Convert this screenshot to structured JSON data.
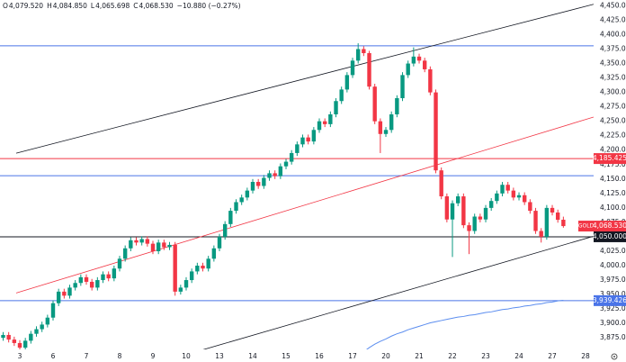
{
  "chart_data": {
    "type": "candlestick",
    "header": [
      {
        "key": "O",
        "text": "4,079.520"
      },
      {
        "key": "H",
        "text": "4,084.850"
      },
      {
        "key": "L",
        "text": "4,065.698"
      },
      {
        "key": "C",
        "text": "4,068.530"
      }
    ],
    "header_change": "−10.880 (−0.27%)",
    "header_color": "#f23645",
    "categories": [
      null,
      null,
      null,
      "3",
      null,
      null,
      null,
      null,
      null,
      "6",
      null,
      null,
      null,
      null,
      null,
      "7",
      null,
      null,
      null,
      null,
      null,
      "8",
      null,
      null,
      null,
      null,
      null,
      "9",
      null,
      null,
      null,
      null,
      null,
      "10",
      null,
      null,
      null,
      null,
      null,
      "13",
      null,
      null,
      null,
      null,
      null,
      "14",
      null,
      null,
      null,
      null,
      null,
      "15",
      null,
      null,
      null,
      null,
      null,
      "16",
      null,
      null,
      null,
      null,
      null,
      "17",
      null,
      null,
      null,
      null,
      null,
      "20",
      null,
      null,
      null,
      null,
      null,
      "21",
      null,
      null,
      null,
      null,
      null,
      "22",
      null,
      null,
      null,
      null,
      null,
      "23",
      null,
      null,
      null,
      null,
      null,
      "24",
      null,
      null,
      null,
      null,
      null,
      "27",
      null,
      null,
      null,
      null,
      null,
      "28"
    ],
    "open": [
      3875,
      3880,
      3872,
      3866,
      3858,
      3870,
      3882,
      3890,
      3898,
      3910,
      3935,
      3955,
      3948,
      3962,
      3970,
      3980,
      3972,
      3962,
      3975,
      3985,
      3978,
      3995,
      4012,
      4030,
      4044,
      4040,
      4046,
      4038,
      4025,
      4040,
      4032,
      4036,
      3955,
      3962,
      3975,
      3990,
      4000,
      3995,
      4012,
      4030,
      4050,
      4072,
      4095,
      4110,
      4118,
      4130,
      4145,
      4138,
      4152,
      4160,
      4155,
      4172,
      4180,
      4195,
      4210,
      4222,
      4215,
      4235,
      4250,
      4245,
      4262,
      4285,
      4305,
      4330,
      4355,
      4375,
      4368,
      4310,
      4250,
      4228,
      4235,
      4262,
      4290,
      4330,
      4350,
      4362,
      4355,
      4340,
      4300,
      4165,
      4120,
      4080,
      4108,
      4120,
      4070,
      4060,
      4085,
      4080,
      4100,
      4112,
      4125,
      4140,
      4130,
      4118,
      4122,
      4110,
      4095,
      4060,
      4050,
      4100,
      4092,
      4079.52,
      null,
      null,
      null,
      null
    ],
    "high": [
      3885,
      3885,
      3877,
      3871,
      3875,
      3887,
      3895,
      3903,
      3915,
      3940,
      3960,
      3960,
      3967,
      3975,
      3985,
      3985,
      3977,
      3980,
      3990,
      3990,
      4000,
      4017,
      4035,
      4049,
      4049,
      4051,
      4051,
      4043,
      4045,
      4045,
      4041,
      4041,
      3967,
      3980,
      3995,
      4005,
      4005,
      4017,
      4035,
      4055,
      4077,
      4100,
      4115,
      4123,
      4135,
      4150,
      4150,
      4157,
      4165,
      4165,
      4177,
      4185,
      4200,
      4215,
      4227,
      4227,
      4240,
      4255,
      4255,
      4267,
      4290,
      4310,
      4335,
      4360,
      4385,
      4380,
      4372,
      4315,
      4255,
      4240,
      4267,
      4295,
      4335,
      4355,
      4378,
      4367,
      4360,
      4345,
      4305,
      4170,
      4125,
      4113,
      4125,
      4125,
      4075,
      4090,
      4090,
      4105,
      4117,
      4130,
      4145,
      4145,
      4135,
      4127,
      4127,
      4115,
      4100,
      4065,
      4105,
      4105,
      4097,
      4084.85,
      null,
      null,
      null,
      null
    ],
    "low": [
      3870,
      3867,
      3861,
      3853,
      3853,
      3865,
      3877,
      3885,
      3893,
      3905,
      3930,
      3943,
      3943,
      3957,
      3965,
      3967,
      3957,
      3957,
      3970,
      3973,
      3973,
      3990,
      4007,
      4025,
      4035,
      4035,
      4033,
      4020,
      4020,
      4027,
      4027,
      3948,
      3950,
      3957,
      3970,
      3985,
      3990,
      3990,
      4007,
      4025,
      4045,
      4067,
      4090,
      4105,
      4113,
      4125,
      4133,
      4133,
      4147,
      4150,
      4150,
      4167,
      4175,
      4190,
      4205,
      4210,
      4210,
      4230,
      4240,
      4240,
      4257,
      4280,
      4300,
      4325,
      4350,
      4363,
      4305,
      4245,
      4195,
      4223,
      4230,
      4257,
      4285,
      4325,
      4345,
      4350,
      4335,
      4295,
      4160,
      4115,
      4075,
      4015,
      4103,
      4065,
      4020,
      4055,
      4075,
      4075,
      4095,
      4107,
      4120,
      4125,
      4113,
      4113,
      4105,
      4090,
      4055,
      4040,
      4045,
      4087,
      4074.41,
      4065.698,
      null,
      null,
      null,
      null
    ],
    "close": [
      3880,
      3872,
      3866,
      3858,
      3870,
      3882,
      3890,
      3898,
      3910,
      3935,
      3955,
      3948,
      3962,
      3970,
      3980,
      3972,
      3962,
      3975,
      3985,
      3978,
      3995,
      4012,
      4030,
      4044,
      4040,
      4046,
      4038,
      4025,
      4040,
      4032,
      4036,
      3955,
      3962,
      3975,
      3990,
      4000,
      3995,
      4012,
      4030,
      4050,
      4072,
      4095,
      4110,
      4118,
      4130,
      4145,
      4138,
      4152,
      4160,
      4155,
      4172,
      4180,
      4195,
      4210,
      4222,
      4215,
      4235,
      4250,
      4245,
      4262,
      4285,
      4305,
      4330,
      4355,
      4375,
      4368,
      4310,
      4250,
      4228,
      4235,
      4262,
      4290,
      4330,
      4350,
      4362,
      4355,
      4340,
      4300,
      4165,
      4120,
      4080,
      4108,
      4120,
      4070,
      4060,
      4085,
      4080,
      4100,
      4112,
      4125,
      4140,
      4130,
      4118,
      4122,
      4110,
      4095,
      4060,
      4050,
      4100,
      4092,
      4079.41,
      4068.53,
      null,
      null,
      null,
      null
    ],
    "up_color": "#089981",
    "down_color": "#f23645",
    "ma": {
      "color": "#5b8def",
      "values": [
        null,
        null,
        null,
        null,
        null,
        null,
        null,
        null,
        null,
        null,
        null,
        null,
        null,
        null,
        null,
        null,
        null,
        null,
        null,
        null,
        null,
        null,
        null,
        null,
        null,
        null,
        null,
        null,
        null,
        null,
        null,
        null,
        null,
        null,
        null,
        null,
        null,
        null,
        null,
        null,
        null,
        null,
        null,
        null,
        null,
        null,
        null,
        null,
        null,
        null,
        null,
        null,
        null,
        null,
        null,
        null,
        null,
        null,
        null,
        null,
        null,
        null,
        null,
        null,
        null,
        3851,
        3858,
        3864,
        3869,
        3873,
        3878,
        3882,
        3885,
        3889,
        3892,
        3895,
        3898,
        3901,
        3903,
        3905,
        3907,
        3909,
        3911,
        3912,
        3914,
        3915,
        3917,
        3919,
        3920,
        3922,
        3924,
        3925,
        3927,
        3928,
        3930,
        3931,
        3933,
        3934,
        3936,
        3937,
        3939,
        3940,
        null,
        null,
        null,
        null
      ]
    },
    "trendlines": [
      {
        "color": "#131722",
        "x": [
          2.35,
          106.45
        ],
        "y": [
          4194.8,
          4452.6
        ]
      },
      {
        "color": "#131722",
        "x": [
          34.8,
          106.45
        ],
        "y": [
          3851,
          4051
        ]
      },
      {
        "color": "#f23645",
        "x": [
          2.35,
          106.45
        ],
        "y": [
          3952.6,
          4257.3
        ]
      }
    ],
    "levels": [
      {
        "value": 4380.7,
        "color": "#4a74e8"
      },
      {
        "value": 4185.425,
        "label": "4,185.425",
        "color": "#f23645"
      },
      {
        "value": 4155.7,
        "color": "#4a74e8"
      },
      {
        "value": 4050,
        "label": "4,050.000",
        "color": "#131722"
      },
      {
        "value": 3939.426,
        "label": "3,939.426",
        "color": "#4a74e8"
      }
    ],
    "last_price": {
      "symbol": "GOLD",
      "value": 4068.53,
      "label": "4,068.530",
      "color": "#f23645"
    },
    "ylim": [
      3855,
      4460
    ],
    "yticks": [
      {
        "value": 3875,
        "label": "3,875.000"
      },
      {
        "value": 3900,
        "label": "3,900.000"
      },
      {
        "value": 3925,
        "label": "3,925.000"
      },
      {
        "value": 3950,
        "label": "3,950.000"
      },
      {
        "value": 3975,
        "label": "3,975.000"
      },
      {
        "value": 4000,
        "label": "4,000.000"
      },
      {
        "value": 4025,
        "label": "4,025.000"
      },
      {
        "value": 4050,
        "label": "4,050.000"
      },
      {
        "value": 4075,
        "label": "4,075.000"
      },
      {
        "value": 4100,
        "label": "4,100.000"
      },
      {
        "value": 4125,
        "label": "4,125.000"
      },
      {
        "value": 4150,
        "label": "4,150.000"
      },
      {
        "value": 4175,
        "label": "4,175.000"
      },
      {
        "value": 4200,
        "label": "4,200.000"
      },
      {
        "value": 4225,
        "label": "4,225.000"
      },
      {
        "value": 4250,
        "label": "4,250.000"
      },
      {
        "value": 4275,
        "label": "4,275.000"
      },
      {
        "value": 4300,
        "label": "4,300.000"
      },
      {
        "value": 4325,
        "label": "4,325.000"
      },
      {
        "value": 4350,
        "label": "4,350.000"
      },
      {
        "value": 4375,
        "label": "4,375.000"
      },
      {
        "value": 4400,
        "label": "4,400.000"
      },
      {
        "value": 4425,
        "label": "4,425.000"
      },
      {
        "value": 4450,
        "label": "4,450.000"
      }
    ],
    "grid": false
  }
}
